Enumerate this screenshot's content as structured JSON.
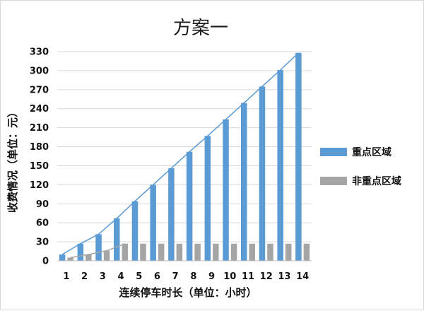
{
  "chart_data": {
    "type": "bar",
    "title": "方案一",
    "xlabel": "连续停车时长（单位：小时）",
    "ylabel": "收费情况（单位：元）",
    "categories": [
      "1",
      "2",
      "3",
      "4",
      "5",
      "6",
      "7",
      "8",
      "9",
      "10",
      "11",
      "12",
      "13",
      "14"
    ],
    "ylim": [
      0,
      330
    ],
    "yticks": [
      0,
      30,
      60,
      90,
      120,
      150,
      180,
      210,
      240,
      270,
      300,
      330
    ],
    "grid": true,
    "legend_position": "right",
    "series": [
      {
        "name": "重点区域",
        "color": "#5b9bd5",
        "values": [
          10,
          27,
          42,
          67,
          94,
          120,
          146,
          172,
          197,
          223,
          249,
          275,
          301,
          328
        ]
      },
      {
        "name": "非重点区域",
        "color": "#a5a5a5",
        "values": [
          5,
          10,
          16,
          27,
          27,
          27,
          27,
          27,
          27,
          27,
          27,
          27,
          27,
          27
        ]
      }
    ]
  }
}
